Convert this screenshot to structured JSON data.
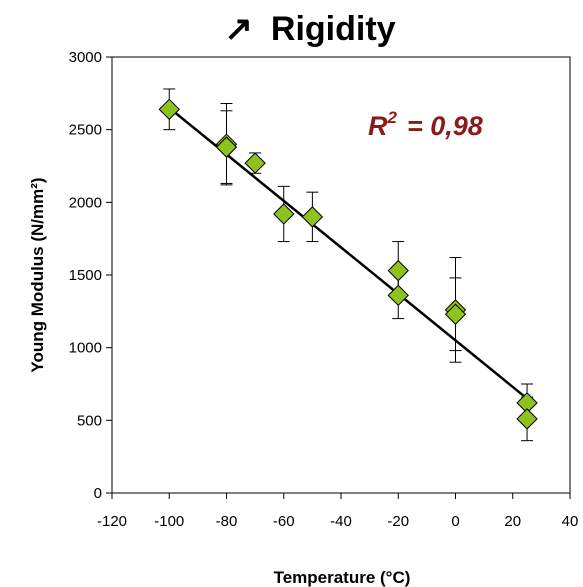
{
  "chart_data": {
    "type": "scatter",
    "title_arrow": "↗",
    "title": "Rigidity",
    "xlabel": "Temperature (°C)",
    "ylabel": "Young Modulus (N/mm²)",
    "xlim": [
      -120,
      40
    ],
    "ylim": [
      0,
      3000
    ],
    "x_ticks": [
      -120,
      -100,
      -80,
      -60,
      -40,
      -20,
      0,
      20,
      40
    ],
    "y_ticks": [
      0,
      500,
      1000,
      1500,
      2000,
      2500,
      3000
    ],
    "grid": false,
    "legend": "none",
    "marker": "diamond",
    "marker_color": "#8dc21f",
    "annotation": {
      "r_symbol": "R",
      "exponent": "2",
      "value_text": "= 0,98",
      "color": "#8b1a1a"
    },
    "points": [
      {
        "x": -100,
        "y": 2640,
        "err": 140
      },
      {
        "x": -80,
        "y": 2400,
        "err": 280
      },
      {
        "x": -80,
        "y": 2380,
        "err": 250
      },
      {
        "x": -70,
        "y": 2270,
        "err": 70
      },
      {
        "x": -60,
        "y": 1920,
        "err": 190
      },
      {
        "x": -50,
        "y": 1900,
        "err": 170
      },
      {
        "x": -20,
        "y": 1530,
        "err": 200
      },
      {
        "x": -20,
        "y": 1360,
        "err": 160
      },
      {
        "x": 0,
        "y": 1260,
        "err": 360
      },
      {
        "x": 0,
        "y": 1230,
        "err": 250
      },
      {
        "x": 25,
        "y": 620,
        "err": 130
      },
      {
        "x": 25,
        "y": 510,
        "err": 150
      }
    ],
    "trendline": {
      "x": [
        -100,
        25
      ],
      "y": [
        2650,
        650
      ]
    }
  }
}
